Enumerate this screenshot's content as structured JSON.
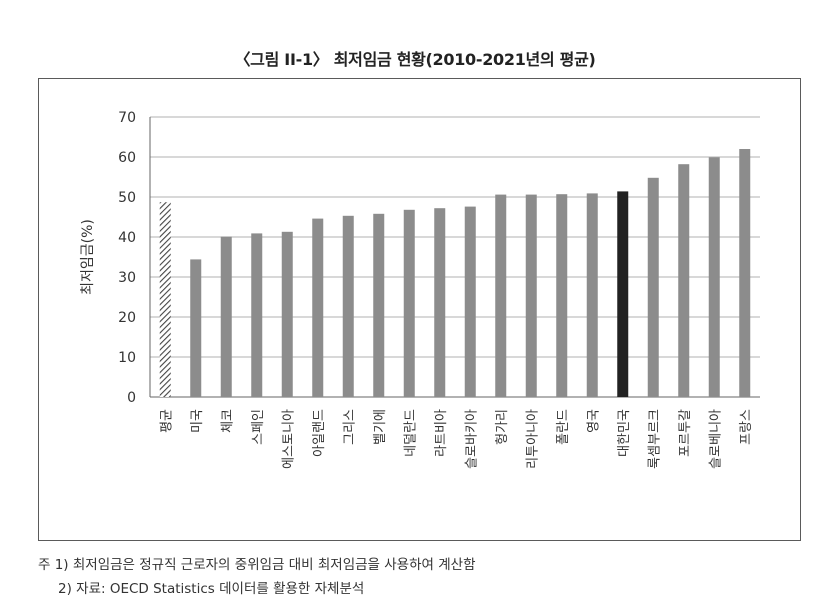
{
  "title": "〈그림 II-1〉 최저임금 현황(2010-2021년의 평균)",
  "chart_data": {
    "type": "bar",
    "ylabel": "최저임금(%)",
    "xlabel": "",
    "ylim": [
      0,
      70
    ],
    "yticks": [
      0,
      10,
      20,
      30,
      40,
      50,
      60,
      70
    ],
    "grid": true,
    "categories": [
      "평균",
      "미국",
      "체코",
      "스페인",
      "에스토니아",
      "아일랜드",
      "그리스",
      "벨기에",
      "네덜란드",
      "라트비아",
      "슬로바키아",
      "헝가리",
      "리투아니아",
      "폴란드",
      "영국",
      "대한민국",
      "룩셈부르크",
      "포르투갈",
      "슬로베니아",
      "프랑스"
    ],
    "values": [
      48.7,
      34.4,
      40.1,
      40.9,
      41.3,
      44.6,
      45.3,
      45.8,
      46.8,
      47.2,
      47.6,
      50.6,
      50.6,
      50.7,
      50.9,
      51.4,
      54.8,
      58.2,
      59.9,
      62.0
    ],
    "bar_styles": [
      "hatched",
      "normal",
      "normal",
      "normal",
      "normal",
      "normal",
      "normal",
      "normal",
      "normal",
      "normal",
      "normal",
      "normal",
      "normal",
      "normal",
      "normal",
      "highlight",
      "normal",
      "normal",
      "normal",
      "normal"
    ],
    "colors": {
      "normal": "#8c8c8c",
      "highlight": "#222222",
      "hatch": "#444444",
      "grid": "#b0b0b0"
    }
  },
  "notes": {
    "note1": "주 1) 최저임금은 정규직 근로자의 중위임금 대비 최저임금을 사용하여 계산함",
    "note2": "2) 자료: OECD Statistics 데이터를 활용한 자체분석"
  }
}
